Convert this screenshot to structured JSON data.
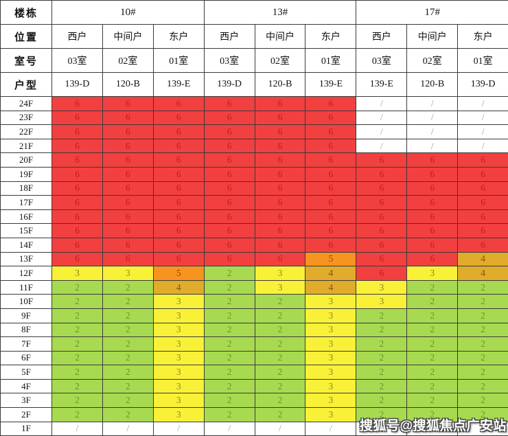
{
  "watermark": {
    "text": "搜狐号@搜狐焦点广安站"
  },
  "chart_data": {
    "type": "table",
    "corner_labels": {
      "building": "楼栋",
      "position": "位置",
      "room": "室号",
      "unit_type": "户型"
    },
    "buildings": [
      {
        "name": "10#",
        "units": [
          {
            "position": "西户",
            "room": "03室",
            "type": "139-D"
          },
          {
            "position": "中间户",
            "room": "02室",
            "type": "120-B"
          },
          {
            "position": "东户",
            "room": "01室",
            "type": "139-E"
          }
        ]
      },
      {
        "name": "13#",
        "units": [
          {
            "position": "西户",
            "room": "03室",
            "type": "139-D"
          },
          {
            "position": "中间户",
            "room": "02室",
            "type": "120-B"
          },
          {
            "position": "东户",
            "room": "01室",
            "type": "139-E"
          }
        ]
      },
      {
        "name": "17#",
        "units": [
          {
            "position": "西户",
            "room": "03室",
            "type": "139-E"
          },
          {
            "position": "中间户",
            "room": "02室",
            "type": "120-B"
          },
          {
            "position": "东户",
            "room": "01室",
            "type": "139-D"
          }
        ]
      }
    ],
    "floors": [
      {
        "label": "24F",
        "values": [
          "6",
          "6",
          "6",
          "6",
          "6",
          "6",
          "/",
          "/",
          "/"
        ]
      },
      {
        "label": "23F",
        "values": [
          "6",
          "6",
          "6",
          "6",
          "6",
          "6",
          "/",
          "/",
          "/"
        ]
      },
      {
        "label": "22F",
        "values": [
          "6",
          "6",
          "6",
          "6",
          "6",
          "6",
          "/",
          "/",
          "/"
        ]
      },
      {
        "label": "21F",
        "values": [
          "6",
          "6",
          "6",
          "6",
          "6",
          "6",
          "/",
          "/",
          "/"
        ]
      },
      {
        "label": "20F",
        "values": [
          "6",
          "6",
          "6",
          "6",
          "6",
          "6",
          "6",
          "6",
          "6"
        ]
      },
      {
        "label": "19F",
        "values": [
          "6",
          "6",
          "6",
          "6",
          "6",
          "6",
          "6",
          "6",
          "6"
        ]
      },
      {
        "label": "18F",
        "values": [
          "6",
          "6",
          "6",
          "6",
          "6",
          "6",
          "6",
          "6",
          "6"
        ]
      },
      {
        "label": "17F",
        "values": [
          "6",
          "6",
          "6",
          "6",
          "6",
          "6",
          "6",
          "6",
          "6"
        ]
      },
      {
        "label": "16F",
        "values": [
          "6",
          "6",
          "6",
          "6",
          "6",
          "6",
          "6",
          "6",
          "6"
        ]
      },
      {
        "label": "15F",
        "values": [
          "6",
          "6",
          "6",
          "6",
          "6",
          "6",
          "6",
          "6",
          "6"
        ]
      },
      {
        "label": "14F",
        "values": [
          "6",
          "6",
          "6",
          "6",
          "6",
          "6",
          "6",
          "6",
          "6"
        ]
      },
      {
        "label": "13F",
        "values": [
          "6",
          "6",
          "6",
          "6",
          "6",
          "5",
          "6",
          "6",
          "4"
        ]
      },
      {
        "label": "12F",
        "values": [
          "3",
          "3",
          "5",
          "2",
          "3",
          "4",
          "6",
          "3",
          "4"
        ]
      },
      {
        "label": "11F",
        "values": [
          "2",
          "2",
          "4",
          "2",
          "3",
          "4",
          "3",
          "2",
          "2"
        ]
      },
      {
        "label": "10F",
        "values": [
          "2",
          "2",
          "3",
          "2",
          "2",
          "3",
          "3",
          "2",
          "2"
        ]
      },
      {
        "label": "9F",
        "values": [
          "2",
          "2",
          "3",
          "2",
          "2",
          "3",
          "2",
          "2",
          "2"
        ]
      },
      {
        "label": "8F",
        "values": [
          "2",
          "2",
          "3",
          "2",
          "2",
          "3",
          "2",
          "2",
          "2"
        ]
      },
      {
        "label": "7F",
        "values": [
          "2",
          "2",
          "3",
          "2",
          "2",
          "3",
          "2",
          "2",
          "2"
        ]
      },
      {
        "label": "6F",
        "values": [
          "2",
          "2",
          "3",
          "2",
          "2",
          "3",
          "2",
          "2",
          "2"
        ]
      },
      {
        "label": "5F",
        "values": [
          "2",
          "2",
          "3",
          "2",
          "2",
          "3",
          "2",
          "2",
          "2"
        ]
      },
      {
        "label": "4F",
        "values": [
          "2",
          "2",
          "3",
          "2",
          "2",
          "3",
          "2",
          "2",
          "2"
        ]
      },
      {
        "label": "3F",
        "values": [
          "2",
          "2",
          "3",
          "2",
          "2",
          "3",
          "2",
          "2",
          "2"
        ]
      },
      {
        "label": "2F",
        "values": [
          "2",
          "2",
          "3",
          "2",
          "2",
          "3",
          "2",
          "2",
          "2"
        ]
      },
      {
        "label": "1F",
        "values": [
          "/",
          "/",
          "/",
          "/",
          "/",
          "/",
          "/",
          "/",
          "/"
        ]
      }
    ],
    "value_styles": {
      "6": {
        "bg": "#f24040",
        "fg": "#bf1d1d"
      },
      "5": {
        "bg": "#f7941f",
        "fg": "#9c3c10"
      },
      "4": {
        "bg": "#e1ab2b",
        "fg": "#7a5a10"
      },
      "3": {
        "bg": "#f8f138",
        "fg": "#8a8a20"
      },
      "2": {
        "bg": "#a7da50",
        "fg": "#71912b"
      },
      "/": {
        "bg": "#ffffff",
        "fg": "#9c9c9c"
      }
    }
  }
}
